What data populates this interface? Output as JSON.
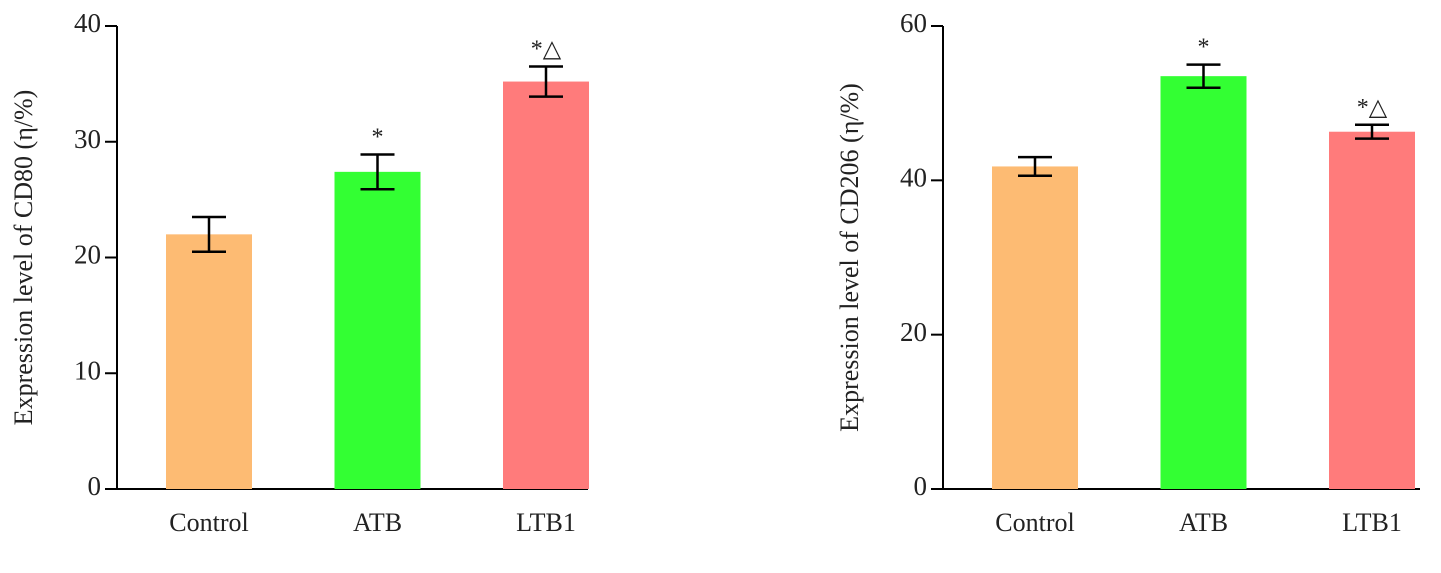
{
  "chart_data": [
    {
      "type": "bar",
      "y_label": "Expression level of CD80 (η/%)",
      "categories": [
        "Control",
        "ATB",
        "LTB1"
      ],
      "values": [
        22,
        27.4,
        35.2
      ],
      "errors": [
        1.5,
        1.5,
        1.3
      ],
      "colors": [
        "#fdbb73",
        "#33ff33",
        "#ff7b7b"
      ],
      "annotations": [
        null,
        "*",
        "*△"
      ],
      "ylim": [
        0,
        40
      ],
      "yticks": [
        0,
        10,
        20,
        30,
        40
      ]
    },
    {
      "type": "bar",
      "y_label": "Expression level of CD206 (η/%)",
      "categories": [
        "Control",
        "ATB",
        "LTB1"
      ],
      "values": [
        41.8,
        53.5,
        46.3
      ],
      "errors": [
        1.2,
        1.5,
        0.9
      ],
      "colors": [
        "#fdbb73",
        "#33ff33",
        "#ff7b7b"
      ],
      "annotations": [
        null,
        "*",
        "*△"
      ],
      "ylim": [
        0,
        60
      ],
      "yticks": [
        0,
        20,
        40,
        60
      ]
    }
  ]
}
